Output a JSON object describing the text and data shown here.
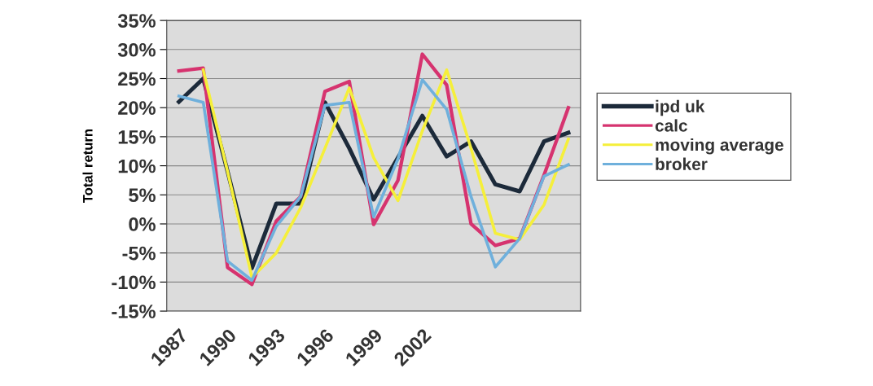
{
  "chart_data": {
    "type": "line",
    "ylabel": "Total return",
    "categories": [
      "1987",
      null,
      "1990",
      null,
      "1993",
      null,
      "1996",
      null,
      "1999",
      null,
      "2002",
      null,
      null,
      null,
      null,
      null,
      null
    ],
    "series": [
      {
        "name": "ipd uk",
        "color": "#1c2a3a",
        "values": [
          21,
          25,
          9,
          -7.6,
          3.5,
          3.5,
          20.9,
          13,
          4.2,
          11.4,
          18.6,
          11.6,
          14.2,
          6.8,
          5.6,
          14.2,
          15.7
        ]
      },
      {
        "name": "calc",
        "color": "#d6336f",
        "values": [
          26.3,
          26.8,
          -7.5,
          -10.4,
          0.5,
          4.7,
          22.8,
          24.5,
          -0.1,
          7.5,
          29.2,
          23.9,
          0,
          -3.7,
          -2.5,
          8.4,
          20
        ]
      },
      {
        "name": "moving average",
        "color": "#f5ef3a",
        "values": [
          null,
          26.5,
          9,
          -9.2,
          -5,
          2.8,
          13,
          23.4,
          11.4,
          4,
          16,
          26.5,
          13,
          -1.6,
          -2.7,
          3.3,
          14.6
        ]
      },
      {
        "name": "broker",
        "color": "#6fb0dc",
        "values": [
          22,
          20.9,
          -6.4,
          -9.7,
          -0.4,
          4.7,
          20.4,
          20.9,
          1.2,
          11.2,
          24.8,
          19.7,
          4.7,
          -7.4,
          -2.5,
          8.2,
          10.2
        ]
      }
    ],
    "ylim": [
      -15,
      35
    ],
    "yticks": [
      {
        "value": -15,
        "label": "-15%"
      },
      {
        "value": -10,
        "label": "-10%"
      },
      {
        "value": -5,
        "label": "-5%"
      },
      {
        "value": 0,
        "label": "0%"
      },
      {
        "value": 5,
        "label": "5%"
      },
      {
        "value": 10,
        "label": "10%"
      },
      {
        "value": 15,
        "label": "15%"
      },
      {
        "value": 20,
        "label": "20%"
      },
      {
        "value": 25,
        "label": "25%"
      },
      {
        "value": 30,
        "label": "30%"
      },
      {
        "value": 35,
        "label": "35%"
      }
    ],
    "grid": "y",
    "legend": "right",
    "marker": "none",
    "line_style": "solid"
  }
}
